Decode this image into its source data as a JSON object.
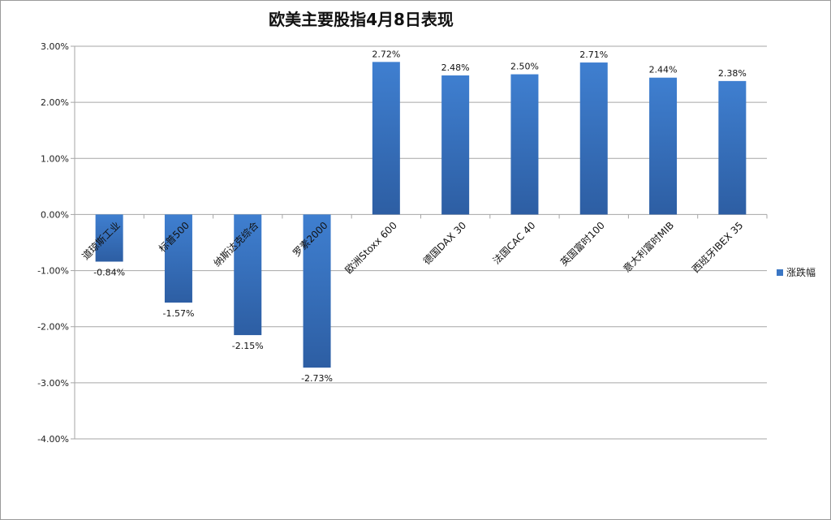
{
  "chart_data": {
    "type": "bar",
    "title": "欧美主要股指4月8日表现",
    "xlabel": "",
    "ylabel": "",
    "categories": [
      "道琼斯工业",
      "标普500",
      "纳斯达克综合",
      "罗素2000",
      "欧洲Stoxx 600",
      "德国DAX 30",
      "法国CAC 40",
      "英国富时100",
      "意大利富时MIB",
      "西班牙IBEX 35"
    ],
    "series": [
      {
        "name": "涨跌幅",
        "values": [
          -0.84,
          -1.57,
          -2.15,
          -2.73,
          2.72,
          2.48,
          2.5,
          2.71,
          2.44,
          2.38
        ],
        "labels": [
          "-0.84%",
          "-1.57%",
          "-2.15%",
          "-2.73%",
          "2.72%",
          "2.48%",
          "2.50%",
          "2.71%",
          "2.44%",
          "2.38%"
        ]
      }
    ],
    "ylim": [
      -4,
      3
    ],
    "yticks": [
      "3.00%",
      "2.00%",
      "1.00%",
      "0.00%",
      "-1.00%",
      "-2.00%",
      "-3.00%",
      "-4.00%"
    ],
    "grid": true,
    "legend_position": "right",
    "bar_color": "#3a76c4"
  }
}
